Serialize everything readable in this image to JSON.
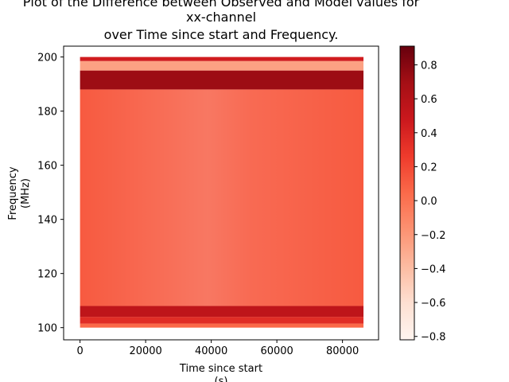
{
  "chart_data": {
    "type": "heatmap",
    "title_lines": [
      "Plot of the Difference between Observed and Model values for",
      "xx-channel",
      "over Time since start and Frequency."
    ],
    "xlabel_lines": [
      "Time since start",
      "(s)"
    ],
    "ylabel_lines": [
      "Frequency",
      "(MHz)"
    ],
    "xlim": [
      -5000,
      91000
    ],
    "ylim": [
      95.5,
      204
    ],
    "xticks": [
      0,
      20000,
      40000,
      60000,
      80000
    ],
    "yticks": [
      100,
      120,
      140,
      160,
      180,
      200
    ],
    "data_extent": {
      "x": [
        0,
        86400
      ],
      "y": [
        100,
        200
      ]
    },
    "colormap": "Reds",
    "colorbar": {
      "range": [
        -0.82,
        0.91
      ],
      "ticks": [
        0.8,
        0.6,
        0.4,
        0.2,
        0.0,
        -0.2,
        -0.4,
        -0.6,
        -0.8
      ],
      "tick_labels": [
        "0.8",
        "0.6",
        "0.4",
        "0.2",
        "0.0",
        "−0.2",
        "−0.4",
        "−0.6",
        "−0.8"
      ]
    },
    "bands": [
      {
        "freq": [
          100,
          101.5
        ],
        "value": 0.05
      },
      {
        "freq": [
          101.5,
          104
        ],
        "value": 0.35
      },
      {
        "freq": [
          104,
          108
        ],
        "value": 0.55
      },
      {
        "freq": [
          108,
          188
        ],
        "value": 0.12
      },
      {
        "freq": [
          188,
          195
        ],
        "value": 0.72
      },
      {
        "freq": [
          195,
          198.5
        ],
        "value": -0.25
      },
      {
        "freq": [
          198.5,
          200
        ],
        "value": 0.45
      }
    ],
    "grid": false,
    "legend": "colorbar-right"
  }
}
